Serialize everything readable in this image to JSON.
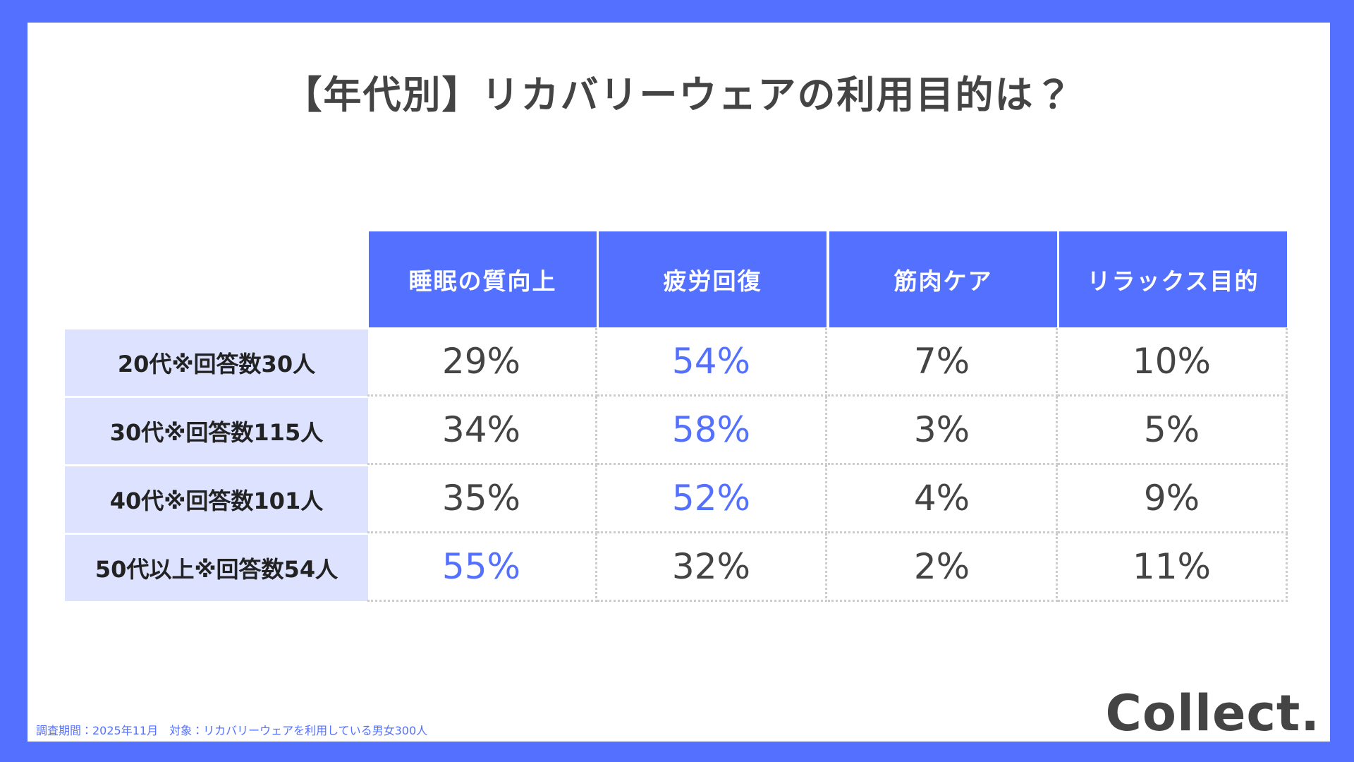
{
  "header": {
    "title": "【年代別】リカバリーウェアの利用目的は？"
  },
  "table": {
    "columns": [
      "睡眠の質向上",
      "疲労回復",
      "筋肉ケア",
      "リラックス目的"
    ],
    "rows": [
      {
        "label": "20代※回答数30人",
        "cells": [
          "29%",
          "54%",
          "7%",
          "10%"
        ],
        "highlight": 1
      },
      {
        "label": "30代※回答数115人",
        "cells": [
          "34%",
          "58%",
          "3%",
          "5%"
        ],
        "highlight": 1
      },
      {
        "label": "40代※回答数101人",
        "cells": [
          "35%",
          "52%",
          "4%",
          "9%"
        ],
        "highlight": 1
      },
      {
        "label": "50代以上※回答数54人",
        "cells": [
          "55%",
          "32%",
          "2%",
          "11%"
        ],
        "highlight": 0
      }
    ]
  },
  "footer": {
    "note": "調査期間：2025年11月　対象：リカバリーウェアを利用している男女300人",
    "logo": "Collect."
  }
}
